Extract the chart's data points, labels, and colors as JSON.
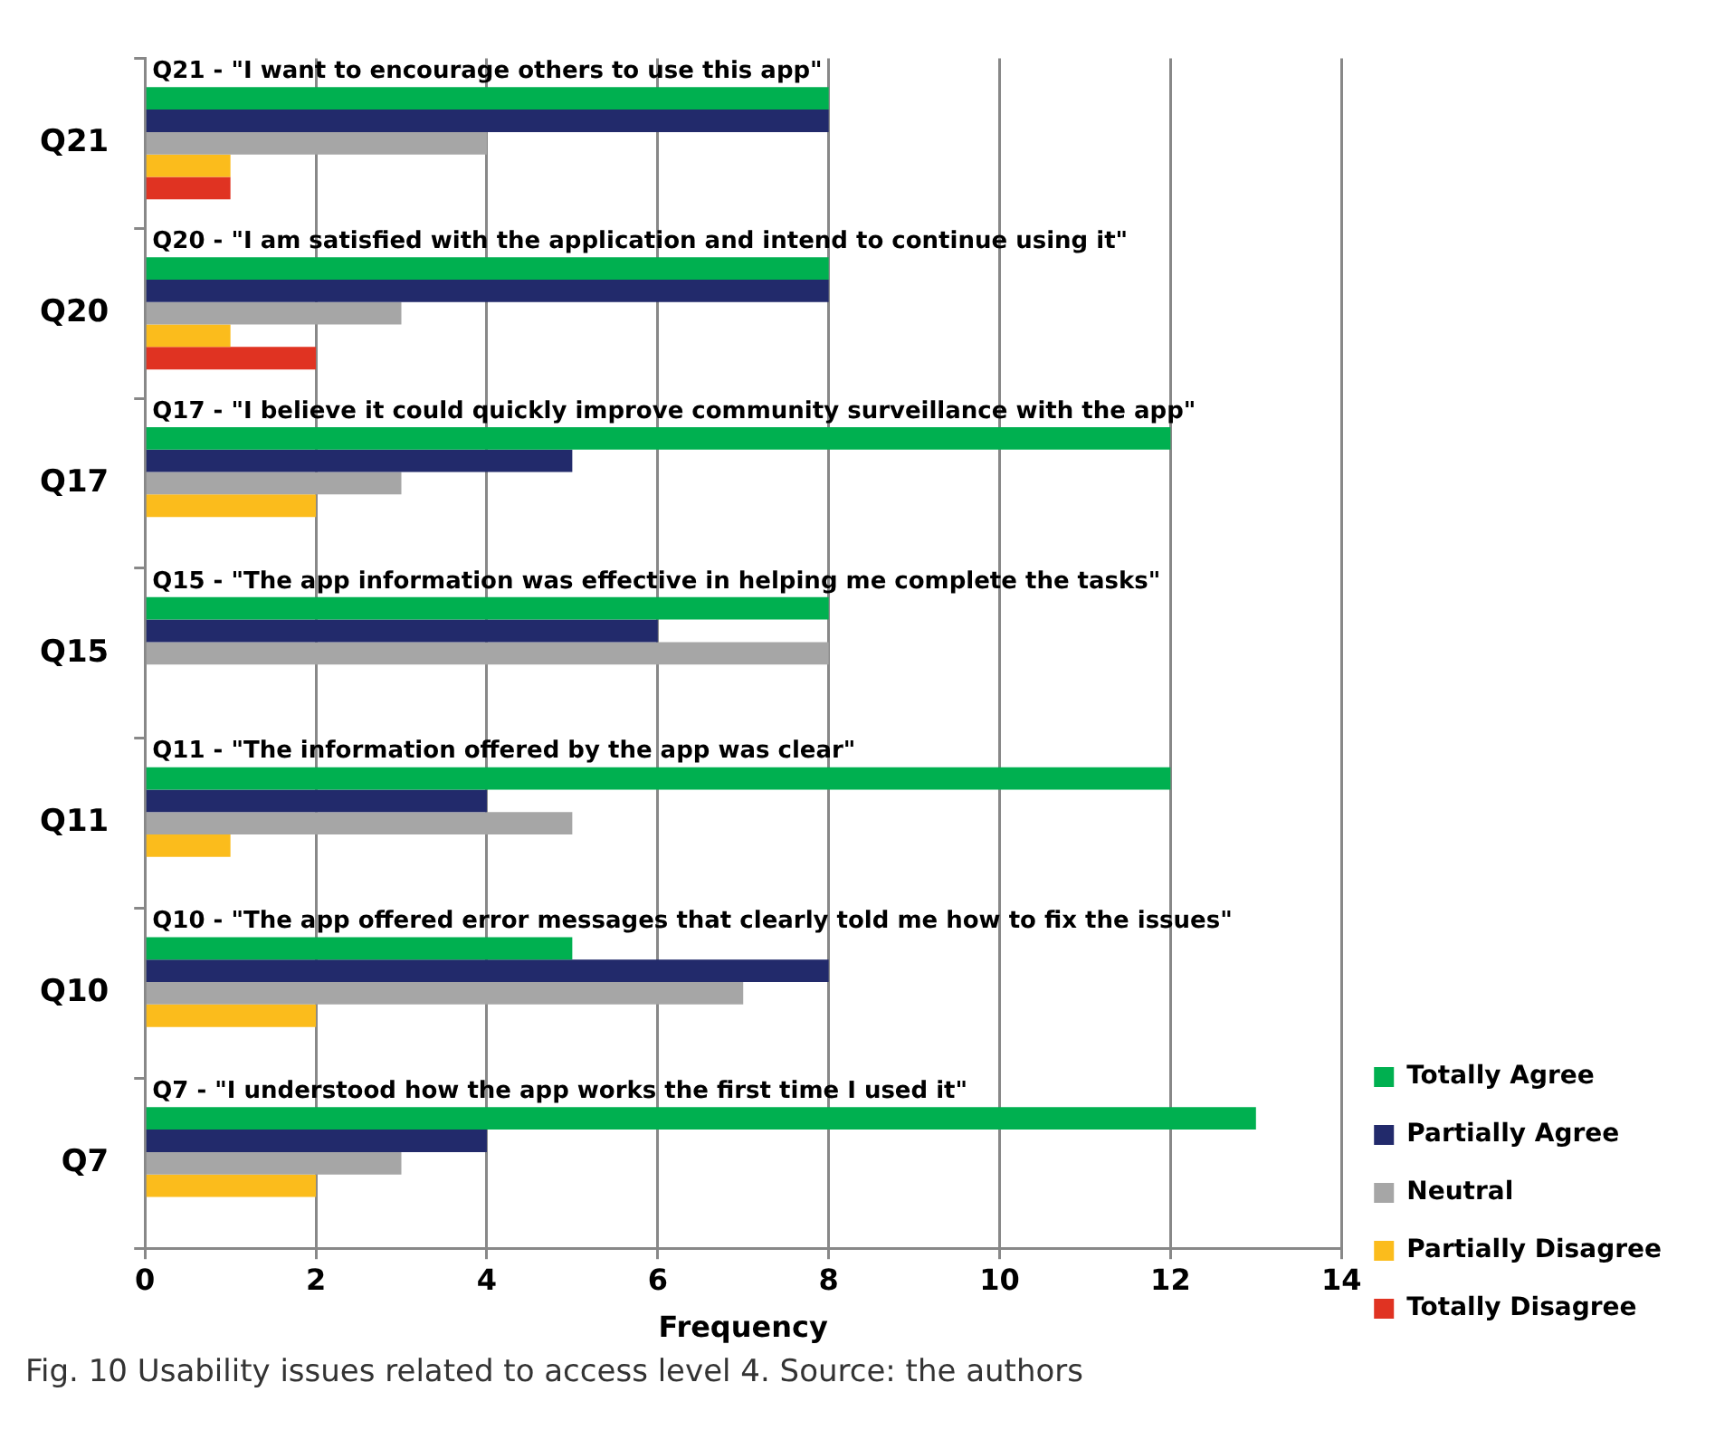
{
  "chart_data": {
    "type": "bar",
    "orientation": "horizontal",
    "xlabel": "Frequency",
    "categories": [
      "Q21",
      "Q20",
      "Q17",
      "Q15",
      "Q11",
      "Q10",
      "Q7"
    ],
    "series": [
      {
        "name": "Totally Agree",
        "color": "#00b050",
        "values": [
          8,
          8,
          12,
          8,
          12,
          5,
          13
        ]
      },
      {
        "name": "Partially Agree",
        "color": "#222a6b",
        "values": [
          8,
          8,
          5,
          6,
          4,
          8,
          4
        ]
      },
      {
        "name": "Neutral",
        "color": "#a6a6a6",
        "values": [
          4,
          3,
          3,
          8,
          5,
          7,
          3
        ]
      },
      {
        "name": "Partially Disagree",
        "color": "#fbbc1c",
        "values": [
          1,
          1,
          2,
          null,
          1,
          2,
          2
        ]
      },
      {
        "name": "Totally Disagree",
        "color": "#e03322",
        "values": [
          1,
          2,
          null,
          null,
          null,
          null,
          null
        ]
      }
    ],
    "xlim": [
      0,
      14
    ],
    "xticks": [
      0,
      2,
      4,
      6,
      8,
      10,
      12,
      14
    ],
    "grid": "x",
    "legend": "bottom right",
    "annotations": [
      "Q21 - \"I want to encourage others to use this app\"",
      "Q20 - \"I am satisfied with the application and intend to continue using it\"",
      "Q17 - \"I believe it could quickly improve community surveillance with the app\"",
      "Q15 - \"The app information was effective in helping me complete the tasks\"",
      "Q11 - \"The information offered by the app was clear\"",
      "Q10 - \"The app offered error messages that clearly told me how to fix the issues\"",
      "Q7 - \"I understood how the app works the first time I used it\"",
      "Fig. 10 Usability issues related to access level 4. Source: the authors"
    ]
  }
}
